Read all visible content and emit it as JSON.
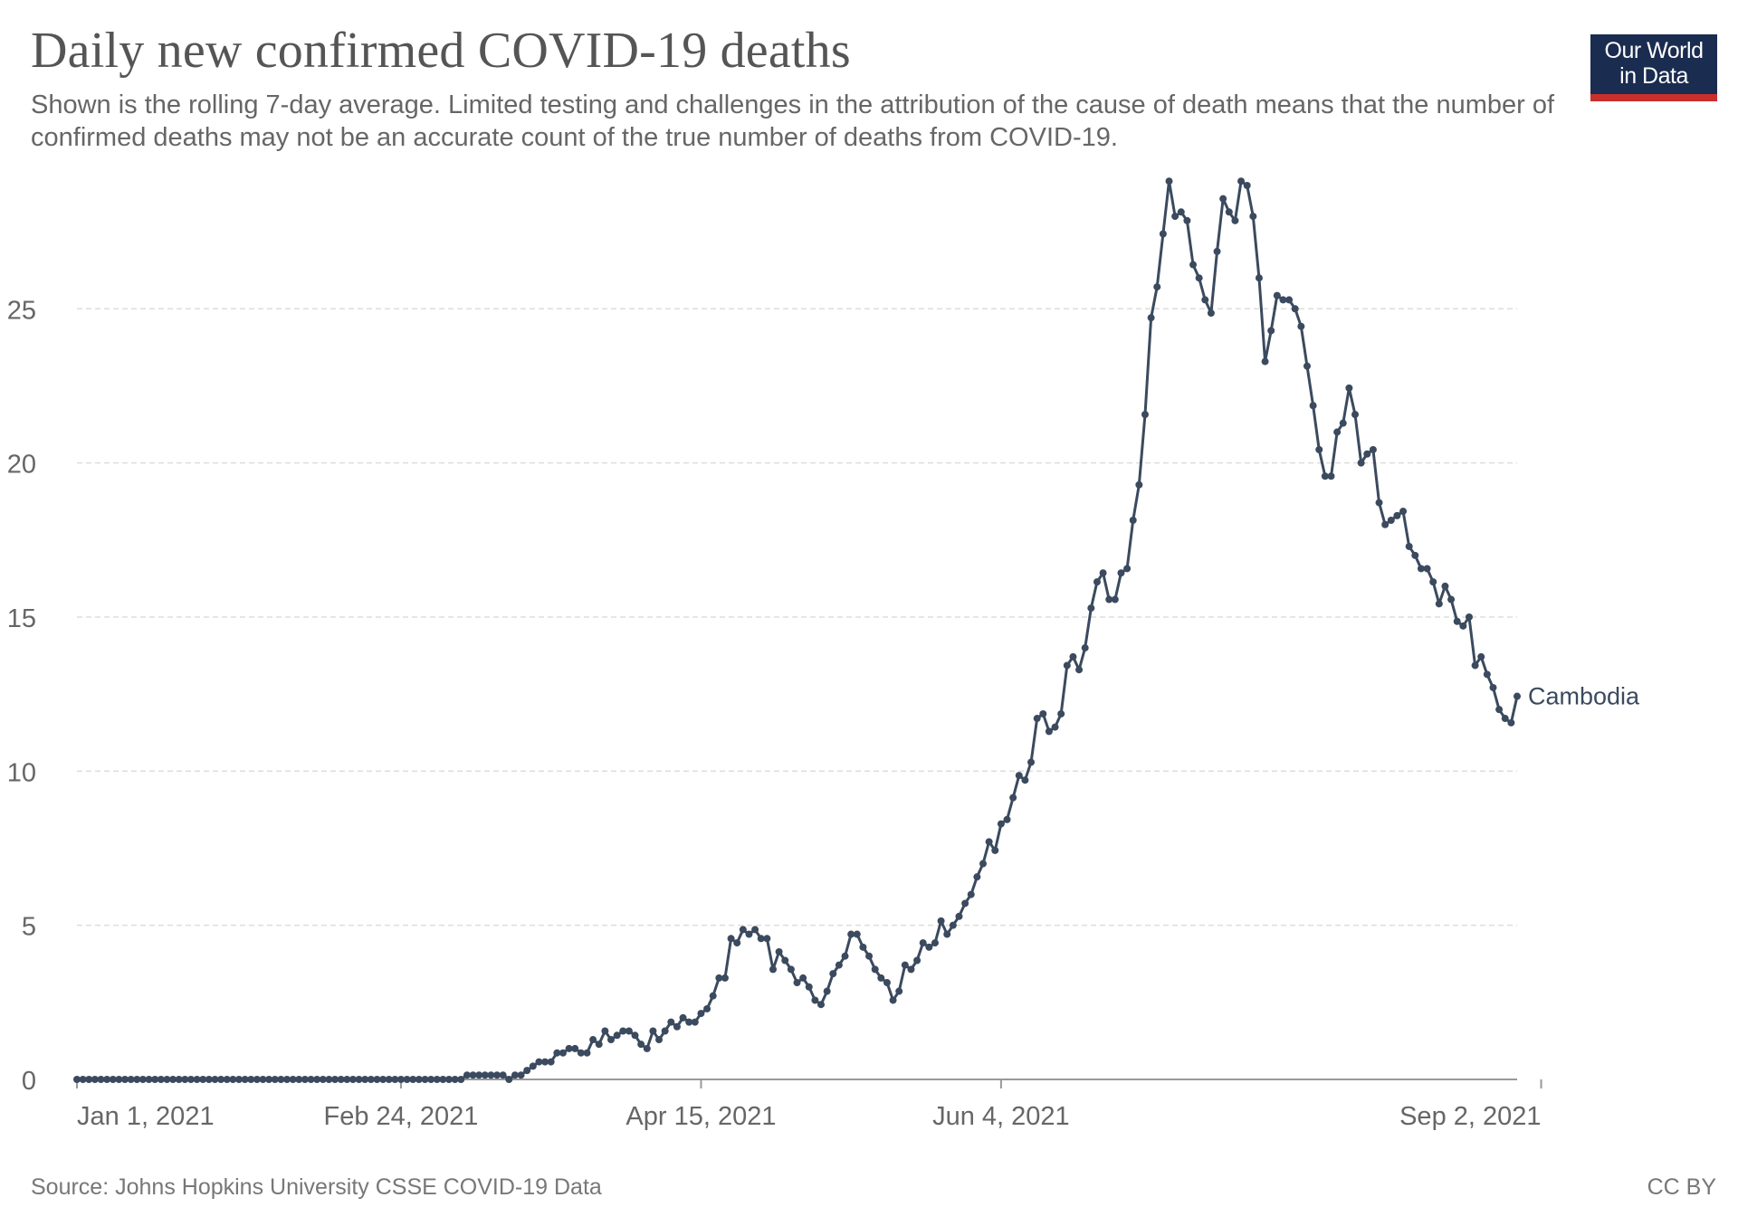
{
  "header": {
    "title": "Daily new confirmed COVID-19 deaths",
    "subtitle": "Shown is the rolling 7-day average. Limited testing and challenges in the attribution of the cause of death means that the number of confirmed deaths may not be an accurate count of the true number of deaths from COVID-19."
  },
  "logo": {
    "line1": "Our World",
    "line2": "in Data"
  },
  "footer": {
    "source": "Source: Johns Hopkins University CSSE COVID-19 Data",
    "license": "CC BY"
  },
  "colors": {
    "line": "#3b4a5e",
    "grid": "#dddddd",
    "axis": "#999999",
    "text": "#666666",
    "logo_bg": "#1a2c4f",
    "logo_accent": "#c9302c"
  },
  "chart_data": {
    "type": "line",
    "title": "Daily new confirmed COVID-19 deaths",
    "xlabel": "",
    "ylabel": "",
    "ylim": [
      0,
      29
    ],
    "y_ticks": [
      0,
      5,
      10,
      15,
      20,
      25
    ],
    "x_ticks": [
      {
        "day": 0,
        "label": "Jan 1, 2021"
      },
      {
        "day": 54,
        "label": "Feb 24, 2021"
      },
      {
        "day": 104,
        "label": "Apr 15, 2021"
      },
      {
        "day": 154,
        "label": "Jun 4, 2021"
      },
      {
        "day": 244,
        "label": "Sep 2, 2021"
      }
    ],
    "x_start": "2021-01-01",
    "x_end": "2021-09-02",
    "grid": true,
    "series": [
      {
        "name": "Cambodia",
        "values": [
          0,
          0,
          0,
          0,
          0,
          0,
          0,
          0,
          0,
          0,
          0,
          0,
          0,
          0,
          0,
          0,
          0,
          0,
          0,
          0,
          0,
          0,
          0,
          0,
          0,
          0,
          0,
          0,
          0,
          0,
          0,
          0,
          0,
          0,
          0,
          0,
          0,
          0,
          0,
          0,
          0,
          0,
          0,
          0,
          0,
          0,
          0,
          0,
          0,
          0,
          0,
          0,
          0,
          0,
          0,
          0,
          0,
          0,
          0,
          0,
          0,
          0,
          0,
          0,
          0,
          0.14,
          0.14,
          0.14,
          0.14,
          0.14,
          0.14,
          0.14,
          0,
          0.14,
          0.14,
          0.29,
          0.43,
          0.57,
          0.57,
          0.57,
          0.86,
          0.86,
          1,
          1,
          0.86,
          0.86,
          1.29,
          1.14,
          1.57,
          1.29,
          1.43,
          1.57,
          1.57,
          1.43,
          1.14,
          1,
          1.57,
          1.29,
          1.57,
          1.86,
          1.71,
          2,
          1.86,
          1.86,
          2.14,
          2.29,
          2.71,
          3.29,
          3.29,
          4.57,
          4.43,
          4.86,
          4.71,
          4.86,
          4.57,
          4.57,
          3.57,
          4.14,
          3.86,
          3.57,
          3.14,
          3.29,
          3,
          2.57,
          2.43,
          2.86,
          3.43,
          3.71,
          4,
          4.71,
          4.71,
          4.29,
          4,
          3.57,
          3.29,
          3.14,
          2.57,
          2.86,
          3.71,
          3.57,
          3.86,
          4.43,
          4.29,
          4.43,
          5.14,
          4.71,
          5,
          5.29,
          5.71,
          6,
          6.57,
          7,
          7.71,
          7.43,
          8.29,
          8.43,
          9.14,
          9.86,
          9.71,
          10.29,
          11.71,
          11.86,
          11.29,
          11.43,
          11.86,
          13.43,
          13.71,
          13.29,
          14,
          15.29,
          16.14,
          16.43,
          15.57,
          15.57,
          16.43,
          16.57,
          18.14,
          19.29,
          21.57,
          24.71,
          25.71,
          27.43,
          29.14,
          28,
          28.14,
          27.86,
          26.43,
          26,
          25.29,
          24.86,
          26.86,
          28.57,
          28.14,
          27.86,
          29.14,
          29,
          28,
          26,
          23.29,
          24.29,
          25.43,
          25.29,
          25.29,
          25,
          24.43,
          23.14,
          21.86,
          20.43,
          19.57,
          19.57,
          21,
          21.29,
          22.43,
          21.57,
          20,
          20.29,
          20.43,
          18.71,
          18,
          18.14,
          18.29,
          18.43,
          17.29,
          17,
          16.57,
          16.57,
          16.14,
          15.43,
          16,
          15.57,
          14.86,
          14.71,
          15,
          13.43,
          13.71,
          13.14,
          12.71,
          12,
          11.71,
          11.57,
          12.43
        ]
      }
    ]
  }
}
